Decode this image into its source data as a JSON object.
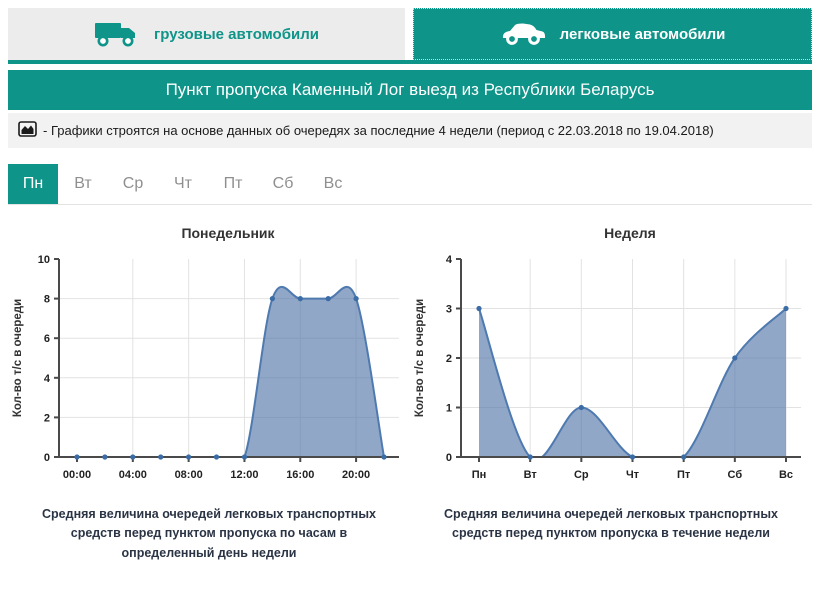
{
  "tabs": [
    {
      "label": "грузовые автомобили",
      "active": false
    },
    {
      "label": "легковые автомобили",
      "active": true
    }
  ],
  "header": {
    "title": "Пункт пропуска Каменный Лог выезд из Республики Беларусь"
  },
  "info": {
    "text": "- Графики строятся на основе данных об очередях за последние 4 недели (период с 22.03.2018 по 19.04.2018)"
  },
  "day_tabs": [
    {
      "label": "Пн",
      "active": true
    },
    {
      "label": "Вт",
      "active": false
    },
    {
      "label": "Ср",
      "active": false
    },
    {
      "label": "Чт",
      "active": false
    },
    {
      "label": "Пт",
      "active": false
    },
    {
      "label": "Сб",
      "active": false
    },
    {
      "label": "Вс",
      "active": false
    }
  ],
  "chart_data": [
    {
      "type": "area",
      "title": "Понедельник",
      "x": [
        "00:00",
        "02:00",
        "04:00",
        "06:00",
        "08:00",
        "10:00",
        "12:00",
        "14:00",
        "16:00",
        "18:00",
        "20:00",
        "22:00"
      ],
      "values": [
        0,
        0,
        0,
        0,
        0,
        0,
        0,
        8,
        8,
        8,
        8,
        0
      ],
      "xtick_indices": [
        0,
        2,
        4,
        6,
        8,
        10
      ],
      "ylabel": "Кол-во т/с в очереди",
      "ylim": [
        0,
        10
      ],
      "yticks": [
        0,
        2,
        4,
        6,
        8,
        10
      ],
      "grid": "on",
      "caption": "Средняя величина очередей легковых транспортных средств перед пунктом пропуска по часам в определенный день недели"
    },
    {
      "type": "area",
      "title": "Неделя",
      "x": [
        "Пн",
        "Вт",
        "Ср",
        "Чт",
        "Пт",
        "Сб",
        "Вс"
      ],
      "values": [
        3,
        0,
        1,
        0,
        0,
        2,
        3
      ],
      "xtick_indices": [
        0,
        1,
        2,
        3,
        4,
        5,
        6
      ],
      "ylabel": "Кол-во т/с в очереди",
      "ylim": [
        0,
        4
      ],
      "yticks": [
        0,
        1,
        2,
        3,
        4
      ],
      "grid": "on",
      "caption": "Средняя величина очередей легковых транспортных средств перед пунктом пропуска в течение недели"
    }
  ],
  "colors": {
    "accent": "#0e9488",
    "area_fill": "rgba(85,120,170,0.65)",
    "area_stroke": "#4f7ab0",
    "dot": "#3b6ca5",
    "grid": "#e2e2e2",
    "axis": "#4a4a4a"
  }
}
